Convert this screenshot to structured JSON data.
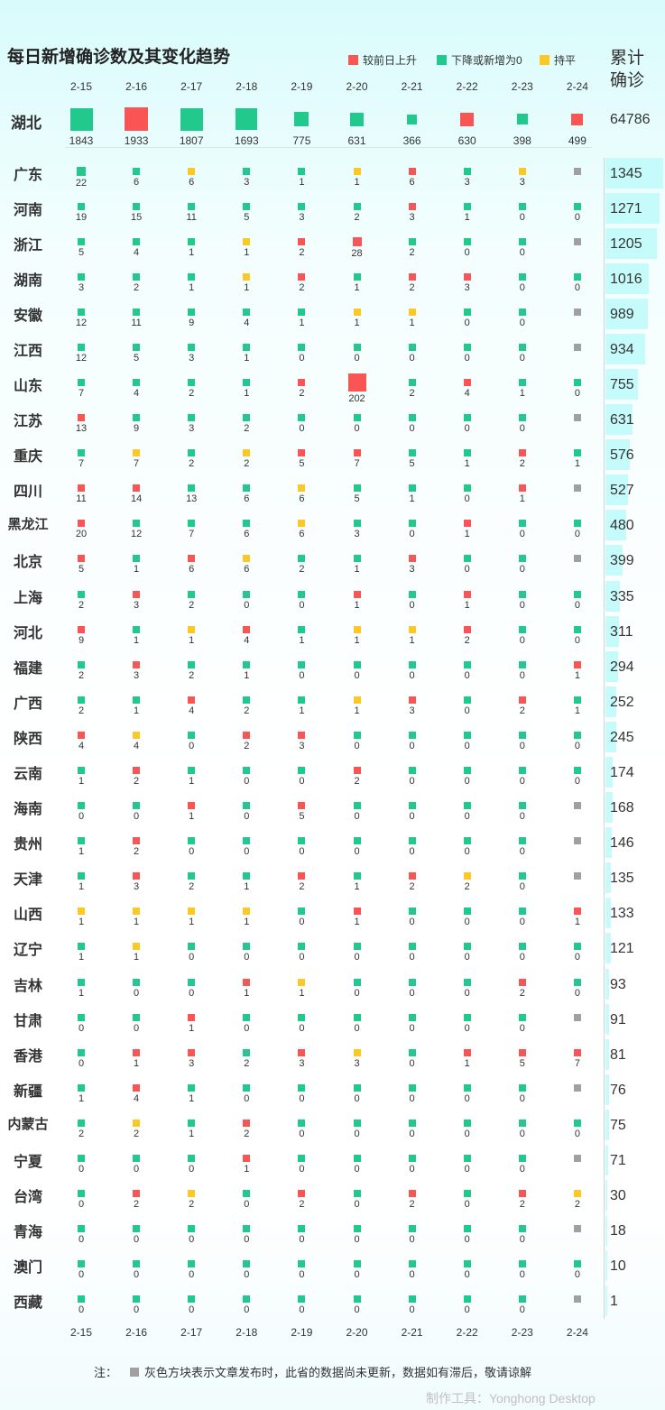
{
  "title": "每日新增确诊数及其变化趋势",
  "legend": [
    {
      "label": "较前日上升",
      "color": "#fa5555"
    },
    {
      "label": "下降或新增为0",
      "color": "#22c98c"
    },
    {
      "label": "持平",
      "color": "#fbc824"
    }
  ],
  "cumulative_title": "累计确诊",
  "dates": [
    "2-15",
    "2-16",
    "2-17",
    "2-18",
    "2-19",
    "2-20",
    "2-21",
    "2-22",
    "2-23",
    "2-24"
  ],
  "colors": {
    "up": "#fa5555",
    "down": "#22c98c",
    "flat": "#fbc824",
    "na": "#a0a0a0",
    "bar": "#c6fbfc"
  },
  "note": {
    "prefix": "注：",
    "text": "灰色方块表示文章发布时，此省的数据尚未更新，数据如有滞后，敬请谅解"
  },
  "credit": "制作工具：Yonghong Desktop",
  "chart_data": {
    "type": "table",
    "title": "每日新增确诊数及其变化趋势",
    "status_codes": {
      "u": "较前日上升",
      "d": "下降或新增为0",
      "f": "持平",
      "n": "灰色方块表示文章发布时，此省的数据尚未更新"
    },
    "hubei": {
      "name": "湖北",
      "total": 64786,
      "values": [
        1843,
        1933,
        1807,
        1693,
        775,
        631,
        366,
        630,
        398,
        499
      ],
      "status": [
        "d",
        "u",
        "d",
        "d",
        "d",
        "d",
        "d",
        "u",
        "d",
        "u"
      ]
    },
    "provinces": [
      {
        "name": "广东",
        "total": 1345,
        "values": [
          22,
          6,
          6,
          3,
          1,
          1,
          6,
          3,
          3,
          null
        ],
        "status": [
          "d",
          "d",
          "f",
          "d",
          "d",
          "f",
          "u",
          "d",
          "f",
          "n"
        ]
      },
      {
        "name": "河南",
        "total": 1271,
        "values": [
          19,
          15,
          11,
          5,
          3,
          2,
          3,
          1,
          0,
          0
        ],
        "status": [
          "d",
          "d",
          "d",
          "d",
          "d",
          "d",
          "u",
          "d",
          "d",
          "d"
        ]
      },
      {
        "name": "浙江",
        "total": 1205,
        "values": [
          5,
          4,
          1,
          1,
          2,
          28,
          2,
          0,
          0,
          null
        ],
        "status": [
          "d",
          "d",
          "d",
          "f",
          "u",
          "u",
          "d",
          "d",
          "d",
          "n"
        ]
      },
      {
        "name": "湖南",
        "total": 1016,
        "values": [
          3,
          2,
          1,
          1,
          2,
          1,
          2,
          3,
          0,
          0
        ],
        "status": [
          "d",
          "d",
          "d",
          "f",
          "u",
          "d",
          "u",
          "u",
          "d",
          "d"
        ]
      },
      {
        "name": "安徽",
        "total": 989,
        "values": [
          12,
          11,
          9,
          4,
          1,
          1,
          1,
          0,
          0,
          null
        ],
        "status": [
          "d",
          "d",
          "d",
          "d",
          "d",
          "f",
          "f",
          "d",
          "d",
          "n"
        ]
      },
      {
        "name": "江西",
        "total": 934,
        "values": [
          12,
          5,
          3,
          1,
          0,
          0,
          0,
          0,
          0,
          null
        ],
        "status": [
          "d",
          "d",
          "d",
          "d",
          "d",
          "d",
          "d",
          "d",
          "d",
          "n"
        ]
      },
      {
        "name": "山东",
        "total": 755,
        "values": [
          7,
          4,
          2,
          1,
          2,
          202,
          2,
          4,
          1,
          0
        ],
        "status": [
          "d",
          "d",
          "d",
          "d",
          "u",
          "u",
          "d",
          "u",
          "d",
          "d"
        ]
      },
      {
        "name": "江苏",
        "total": 631,
        "values": [
          13,
          9,
          3,
          2,
          0,
          0,
          0,
          0,
          0,
          null
        ],
        "status": [
          "u",
          "d",
          "d",
          "d",
          "d",
          "d",
          "d",
          "d",
          "d",
          "n"
        ]
      },
      {
        "name": "重庆",
        "total": 576,
        "values": [
          7,
          7,
          2,
          2,
          5,
          7,
          5,
          1,
          2,
          1
        ],
        "status": [
          "d",
          "f",
          "d",
          "f",
          "u",
          "u",
          "d",
          "d",
          "u",
          "d"
        ]
      },
      {
        "name": "四川",
        "total": 527,
        "values": [
          11,
          14,
          13,
          6,
          6,
          5,
          1,
          0,
          1,
          null
        ],
        "status": [
          "u",
          "u",
          "d",
          "d",
          "f",
          "d",
          "d",
          "d",
          "u",
          "n"
        ]
      },
      {
        "name": "黑龙江",
        "total": 480,
        "values": [
          20,
          12,
          7,
          6,
          6,
          3,
          0,
          1,
          0,
          0
        ],
        "status": [
          "u",
          "d",
          "d",
          "d",
          "f",
          "d",
          "d",
          "u",
          "d",
          "d"
        ]
      },
      {
        "name": "北京",
        "total": 399,
        "values": [
          5,
          1,
          6,
          6,
          2,
          1,
          3,
          0,
          0,
          null
        ],
        "status": [
          "u",
          "d",
          "u",
          "f",
          "d",
          "d",
          "u",
          "d",
          "d",
          "n"
        ]
      },
      {
        "name": "上海",
        "total": 335,
        "values": [
          2,
          3,
          2,
          0,
          0,
          1,
          0,
          1,
          0,
          0
        ],
        "status": [
          "d",
          "u",
          "d",
          "d",
          "d",
          "u",
          "d",
          "u",
          "d",
          "d"
        ]
      },
      {
        "name": "河北",
        "total": 311,
        "values": [
          9,
          1,
          1,
          4,
          1,
          1,
          1,
          2,
          0,
          0
        ],
        "status": [
          "u",
          "d",
          "f",
          "u",
          "d",
          "f",
          "f",
          "u",
          "d",
          "d"
        ]
      },
      {
        "name": "福建",
        "total": 294,
        "values": [
          2,
          3,
          2,
          1,
          0,
          0,
          0,
          0,
          0,
          1
        ],
        "status": [
          "d",
          "u",
          "d",
          "d",
          "d",
          "d",
          "d",
          "d",
          "d",
          "u"
        ]
      },
      {
        "name": "广西",
        "total": 252,
        "values": [
          2,
          1,
          4,
          2,
          1,
          1,
          3,
          0,
          2,
          1
        ],
        "status": [
          "d",
          "d",
          "u",
          "d",
          "d",
          "f",
          "u",
          "d",
          "u",
          "d"
        ]
      },
      {
        "name": "陕西",
        "total": 245,
        "values": [
          4,
          4,
          0,
          2,
          3,
          0,
          0,
          0,
          0,
          0
        ],
        "status": [
          "u",
          "f",
          "d",
          "u",
          "u",
          "d",
          "d",
          "d",
          "d",
          "d"
        ]
      },
      {
        "name": "云南",
        "total": 174,
        "values": [
          1,
          2,
          1,
          0,
          0,
          2,
          0,
          0,
          0,
          0
        ],
        "status": [
          "d",
          "u",
          "d",
          "d",
          "d",
          "u",
          "d",
          "d",
          "d",
          "d"
        ]
      },
      {
        "name": "海南",
        "total": 168,
        "values": [
          0,
          0,
          1,
          0,
          5,
          0,
          0,
          0,
          0,
          null
        ],
        "status": [
          "d",
          "d",
          "u",
          "d",
          "u",
          "d",
          "d",
          "d",
          "d",
          "n"
        ]
      },
      {
        "name": "贵州",
        "total": 146,
        "values": [
          1,
          2,
          0,
          0,
          0,
          0,
          0,
          0,
          0,
          null
        ],
        "status": [
          "d",
          "u",
          "d",
          "d",
          "d",
          "d",
          "d",
          "d",
          "d",
          "n"
        ]
      },
      {
        "name": "天津",
        "total": 135,
        "values": [
          1,
          3,
          2,
          1,
          2,
          1,
          2,
          2,
          0,
          null
        ],
        "status": [
          "d",
          "u",
          "d",
          "d",
          "u",
          "d",
          "u",
          "f",
          "d",
          "n"
        ]
      },
      {
        "name": "山西",
        "total": 133,
        "values": [
          1,
          1,
          1,
          1,
          0,
          1,
          0,
          0,
          0,
          1
        ],
        "status": [
          "f",
          "f",
          "f",
          "f",
          "d",
          "u",
          "d",
          "d",
          "d",
          "u"
        ]
      },
      {
        "name": "辽宁",
        "total": 121,
        "values": [
          1,
          1,
          0,
          0,
          0,
          0,
          0,
          0,
          0,
          0
        ],
        "status": [
          "d",
          "f",
          "d",
          "d",
          "d",
          "d",
          "d",
          "d",
          "d",
          "d"
        ]
      },
      {
        "name": "吉林",
        "total": 93,
        "values": [
          1,
          0,
          0,
          1,
          1,
          0,
          0,
          0,
          2,
          0
        ],
        "status": [
          "d",
          "d",
          "d",
          "u",
          "f",
          "d",
          "d",
          "d",
          "u",
          "d"
        ]
      },
      {
        "name": "甘肃",
        "total": 91,
        "values": [
          0,
          0,
          1,
          0,
          0,
          0,
          0,
          0,
          0,
          null
        ],
        "status": [
          "d",
          "d",
          "u",
          "d",
          "d",
          "d",
          "d",
          "d",
          "d",
          "n"
        ]
      },
      {
        "name": "香港",
        "total": 81,
        "values": [
          0,
          1,
          3,
          2,
          3,
          3,
          0,
          1,
          5,
          7
        ],
        "status": [
          "d",
          "u",
          "u",
          "d",
          "u",
          "f",
          "d",
          "u",
          "u",
          "u"
        ]
      },
      {
        "name": "新疆",
        "total": 76,
        "values": [
          1,
          4,
          1,
          0,
          0,
          0,
          0,
          0,
          0,
          null
        ],
        "status": [
          "d",
          "u",
          "d",
          "d",
          "d",
          "d",
          "d",
          "d",
          "d",
          "n"
        ]
      },
      {
        "name": "内蒙古",
        "total": 75,
        "values": [
          2,
          2,
          1,
          2,
          0,
          0,
          0,
          0,
          0,
          0
        ],
        "status": [
          "d",
          "f",
          "d",
          "u",
          "d",
          "d",
          "d",
          "d",
          "d",
          "d"
        ]
      },
      {
        "name": "宁夏",
        "total": 71,
        "values": [
          0,
          0,
          0,
          1,
          0,
          0,
          0,
          0,
          0,
          null
        ],
        "status": [
          "d",
          "d",
          "d",
          "u",
          "d",
          "d",
          "d",
          "d",
          "d",
          "n"
        ]
      },
      {
        "name": "台湾",
        "total": 30,
        "values": [
          0,
          2,
          2,
          0,
          2,
          0,
          2,
          0,
          2,
          2
        ],
        "status": [
          "d",
          "u",
          "f",
          "d",
          "u",
          "d",
          "u",
          "d",
          "u",
          "f"
        ]
      },
      {
        "name": "青海",
        "total": 18,
        "values": [
          0,
          0,
          0,
          0,
          0,
          0,
          0,
          0,
          0,
          null
        ],
        "status": [
          "d",
          "d",
          "d",
          "d",
          "d",
          "d",
          "d",
          "d",
          "d",
          "n"
        ]
      },
      {
        "name": "澳门",
        "total": 10,
        "values": [
          0,
          0,
          0,
          0,
          0,
          0,
          0,
          0,
          0,
          0
        ],
        "status": [
          "d",
          "d",
          "d",
          "d",
          "d",
          "d",
          "d",
          "d",
          "d",
          "d"
        ]
      },
      {
        "name": "西藏",
        "total": 1,
        "values": [
          0,
          0,
          0,
          0,
          0,
          0,
          0,
          0,
          0,
          null
        ],
        "status": [
          "d",
          "d",
          "d",
          "d",
          "d",
          "d",
          "d",
          "d",
          "d",
          "n"
        ]
      }
    ]
  }
}
